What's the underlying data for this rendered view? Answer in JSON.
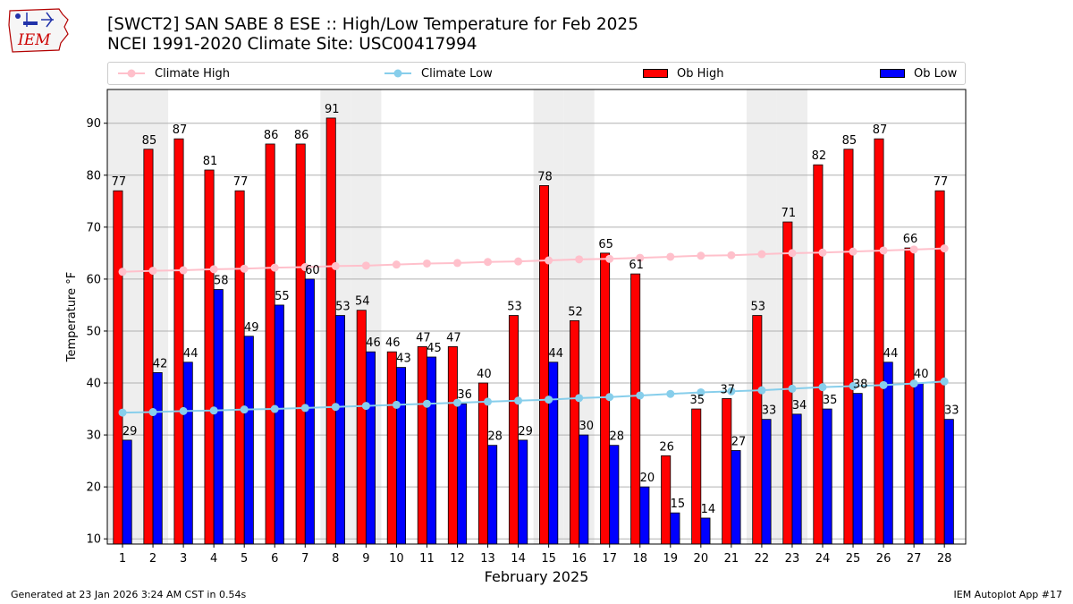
{
  "header": {
    "title_line1": "[SWCT2] SAN SABE 8 ESE :: High/Low Temperature for Feb 2025",
    "title_line2": "NCEI 1991-2020 Climate Site: USC00417994",
    "logo_text": "IEM"
  },
  "legend": {
    "items": [
      {
        "label": "Climate High",
        "color": "#ffc0cb",
        "kind": "line"
      },
      {
        "label": "Climate Low",
        "color": "#87ceeb",
        "kind": "line"
      },
      {
        "label": "Ob High",
        "color": "#ff0000",
        "kind": "bar"
      },
      {
        "label": "Ob Low",
        "color": "#0000ff",
        "kind": "bar"
      }
    ]
  },
  "chart_data": {
    "type": "bar",
    "title": "[SWCT2] SAN SABE 8 ESE :: High/Low Temperature for Feb 2025",
    "subtitle": "NCEI 1991-2020 Climate Site: USC00417994",
    "xlabel": "February 2025",
    "ylabel": "Temperature °F",
    "ylim": [
      9,
      96.5
    ],
    "yticks": [
      10,
      20,
      30,
      40,
      50,
      60,
      70,
      80,
      90
    ],
    "grid": true,
    "legend_position": "top",
    "categories": [
      1,
      2,
      3,
      4,
      5,
      6,
      7,
      8,
      9,
      10,
      11,
      12,
      13,
      14,
      15,
      16,
      17,
      18,
      19,
      20,
      21,
      22,
      23,
      24,
      25,
      26,
      27,
      28
    ],
    "shaded_weekend_days": [
      1,
      2,
      8,
      9,
      15,
      16,
      22,
      23
    ],
    "series": [
      {
        "name": "Ob High",
        "type": "bar",
        "color": "#ff0000",
        "values": [
          77,
          85,
          87,
          81,
          77,
          86,
          86,
          91,
          54,
          46,
          47,
          47,
          40,
          53,
          78,
          52,
          65,
          61,
          26,
          35,
          37,
          53,
          71,
          82,
          85,
          87,
          66,
          77
        ]
      },
      {
        "name": "Ob Low",
        "type": "bar",
        "color": "#0000ff",
        "values": [
          29,
          42,
          44,
          58,
          49,
          55,
          60,
          53,
          46,
          43,
          45,
          36,
          28,
          29,
          44,
          30,
          28,
          20,
          15,
          14,
          27,
          33,
          34,
          35,
          38,
          44,
          40,
          33
        ]
      },
      {
        "name": "Climate High",
        "type": "line",
        "color": "#ffc0cb",
        "values": [
          61.4,
          61.6,
          61.7,
          61.9,
          62.0,
          62.2,
          62.3,
          62.5,
          62.6,
          62.8,
          63.0,
          63.1,
          63.3,
          63.4,
          63.6,
          63.8,
          63.9,
          64.1,
          64.3,
          64.5,
          64.6,
          64.8,
          65.0,
          65.1,
          65.3,
          65.5,
          65.7,
          65.9
        ]
      },
      {
        "name": "Climate Low",
        "type": "line",
        "color": "#87ceeb",
        "values": [
          34.3,
          34.4,
          34.6,
          34.7,
          34.9,
          35.0,
          35.2,
          35.4,
          35.6,
          35.8,
          36.0,
          36.2,
          36.4,
          36.6,
          36.8,
          37.1,
          37.3,
          37.6,
          37.9,
          38.2,
          38.4,
          38.6,
          38.9,
          39.2,
          39.4,
          39.6,
          39.9,
          40.3
        ]
      }
    ]
  },
  "footer": {
    "generated": "Generated at 23 Jan 2026 3:24 AM CST in 0.54s",
    "app": "IEM Autoplot App #17"
  }
}
